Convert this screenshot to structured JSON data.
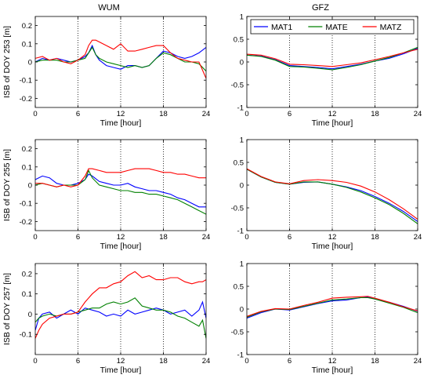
{
  "chart_data": {
    "type": "line",
    "x_unit_label": "Time [hour]",
    "xlim": [
      0,
      24
    ],
    "x_ticks": [
      0,
      6,
      12,
      18,
      24
    ],
    "columns": [
      "WUM",
      "GFZ"
    ],
    "legend": [
      "MAT1",
      "MATE",
      "MATZ"
    ],
    "series_colors": [
      "#0000ff",
      "#008000",
      "#ff0000"
    ],
    "grid": "dotted vertical lines at 6, 12, 18",
    "panels": [
      {
        "center": "WUM",
        "row": 0,
        "ylabel": "ISB of DOY 253 [m]",
        "ylim": [
          -0.25,
          0.25
        ],
        "y_ticks": [
          -0.2,
          -0.1,
          0,
          0.1,
          0.2
        ],
        "y_tick_labels": [
          "-0.2",
          "-0.1",
          "0",
          "0.1",
          "0.2"
        ],
        "series": [
          {
            "name": "MAT1",
            "x": [
              0,
              1,
              2,
              3,
              4,
              5,
              6,
              7,
              7.5,
              8,
              8.5,
              9,
              10,
              11,
              12,
              13,
              14,
              15,
              16,
              17,
              18,
              19,
              20,
              21,
              22,
              23,
              24
            ],
            "values": [
              0,
              0.02,
              0.01,
              0.02,
              0.01,
              0,
              0.01,
              0.03,
              0.05,
              0.09,
              0.04,
              0.01,
              -0.02,
              -0.03,
              -0.04,
              -0.02,
              -0.02,
              -0.03,
              -0.02,
              0.02,
              0.06,
              0.05,
              0.03,
              0.02,
              0.03,
              0.05,
              0.08
            ]
          },
          {
            "name": "MATE",
            "x": [
              0,
              1,
              2,
              3,
              4,
              5,
              6,
              7,
              7.5,
              8,
              8.5,
              9,
              10,
              11,
              12,
              13,
              14,
              15,
              16,
              17,
              18,
              19,
              20,
              21,
              22,
              23,
              24
            ],
            "values": [
              0,
              0.01,
              0.01,
              0.01,
              0,
              0,
              0.01,
              0.02,
              0.05,
              0.08,
              0.04,
              0.02,
              0,
              -0.01,
              -0.02,
              -0.03,
              -0.02,
              -0.03,
              -0.02,
              0.02,
              0.05,
              0.04,
              0.02,
              0,
              0,
              -0.01,
              -0.05
            ]
          },
          {
            "name": "MATZ",
            "x": [
              0,
              1,
              2,
              3,
              4,
              5,
              6,
              7,
              7.5,
              8,
              8.5,
              9,
              10,
              11,
              12,
              13,
              14,
              15,
              16,
              17,
              18,
              19,
              20,
              21,
              22,
              23,
              24
            ],
            "values": [
              0.02,
              0.03,
              0.01,
              0.02,
              0,
              -0.01,
              0.01,
              0.04,
              0.09,
              0.12,
              0.12,
              0.11,
              0.09,
              0.07,
              0.1,
              0.06,
              0.06,
              0.07,
              0.08,
              0.09,
              0.09,
              0.05,
              0.02,
              0.01,
              0,
              0,
              -0.09
            ]
          }
        ]
      },
      {
        "center": "GFZ",
        "row": 0,
        "ylabel": "",
        "ylim": [
          -1,
          1
        ],
        "y_ticks": [
          -1,
          -0.5,
          0,
          0.5,
          1
        ],
        "y_tick_labels": [
          "-1",
          "-0.5",
          "0",
          "0.5",
          "1"
        ],
        "legend_position": "top",
        "series": [
          {
            "name": "MAT1",
            "x": [
              0,
              2,
              4,
              6,
              8,
              10,
              12,
              14,
              16,
              18,
              20,
              22,
              24
            ],
            "values": [
              0.15,
              0.13,
              0.05,
              -0.08,
              -0.1,
              -0.12,
              -0.15,
              -0.1,
              -0.05,
              0.02,
              0.08,
              0.18,
              0.3
            ]
          },
          {
            "name": "MATE",
            "x": [
              0,
              2,
              4,
              6,
              8,
              10,
              12,
              14,
              16,
              18,
              20,
              22,
              24
            ],
            "values": [
              0.15,
              0.12,
              0.04,
              -0.1,
              -0.11,
              -0.14,
              -0.17,
              -0.12,
              -0.06,
              0.02,
              0.1,
              0.2,
              0.32
            ]
          },
          {
            "name": "MATZ",
            "x": [
              0,
              2,
              4,
              6,
              8,
              10,
              12,
              14,
              16,
              18,
              20,
              22,
              24
            ],
            "values": [
              0.17,
              0.15,
              0.07,
              -0.05,
              -0.06,
              -0.08,
              -0.1,
              -0.06,
              -0.02,
              0.05,
              0.12,
              0.2,
              0.28
            ]
          }
        ]
      },
      {
        "center": "WUM",
        "row": 1,
        "ylabel": "ISB of DOY 255 [m]",
        "ylim": [
          -0.25,
          0.25
        ],
        "y_ticks": [
          -0.2,
          -0.1,
          0,
          0.1,
          0.2
        ],
        "y_tick_labels": [
          "-0.2",
          "-0.1",
          "0",
          "0.1",
          "0.2"
        ],
        "series": [
          {
            "name": "MAT1",
            "x": [
              0,
              1,
              2,
              3,
              4,
              5,
              6,
              7,
              7.5,
              8,
              9,
              10,
              11,
              12,
              13,
              14,
              15,
              16,
              17,
              18,
              19,
              20,
              21,
              22,
              23,
              24
            ],
            "values": [
              0.03,
              0.05,
              0.04,
              0.01,
              0,
              0,
              0.01,
              0.03,
              0.06,
              0.05,
              0.02,
              0.01,
              0,
              0,
              0.01,
              -0.01,
              -0.02,
              -0.03,
              -0.03,
              -0.04,
              -0.05,
              -0.07,
              -0.08,
              -0.1,
              -0.12,
              -0.12
            ]
          },
          {
            "name": "MATE",
            "x": [
              0,
              1,
              2,
              3,
              4,
              5,
              6,
              7,
              7.5,
              8,
              9,
              10,
              11,
              12,
              13,
              14,
              15,
              16,
              17,
              18,
              19,
              20,
              21,
              22,
              23,
              24
            ],
            "values": [
              0,
              0.01,
              0,
              -0.01,
              0,
              0,
              0,
              0.03,
              0.08,
              0.04,
              0,
              -0.01,
              -0.02,
              -0.03,
              -0.03,
              -0.04,
              -0.04,
              -0.05,
              -0.05,
              -0.06,
              -0.07,
              -0.08,
              -0.1,
              -0.12,
              -0.14,
              -0.16
            ]
          },
          {
            "name": "MATZ",
            "x": [
              0,
              1,
              2,
              3,
              4,
              5,
              6,
              7,
              7.5,
              8,
              9,
              10,
              11,
              12,
              13,
              14,
              15,
              16,
              17,
              18,
              19,
              20,
              21,
              22,
              23,
              24
            ],
            "values": [
              0.01,
              0.01,
              0,
              -0.01,
              0,
              -0.01,
              0,
              0.05,
              0.09,
              0.09,
              0.08,
              0.07,
              0.07,
              0.07,
              0.08,
              0.09,
              0.09,
              0.09,
              0.08,
              0.07,
              0.07,
              0.06,
              0.06,
              0.05,
              0.04,
              0.04
            ]
          }
        ]
      },
      {
        "center": "GFZ",
        "row": 1,
        "ylabel": "",
        "ylim": [
          -1,
          1
        ],
        "y_ticks": [
          -1,
          -0.5,
          0,
          0.5,
          1
        ],
        "y_tick_labels": [
          "-1",
          "-0.5",
          "0",
          "0.5",
          "1"
        ],
        "series": [
          {
            "name": "MAT1",
            "x": [
              0,
              2,
              4,
              6,
              8,
              10,
              12,
              14,
              16,
              18,
              20,
              22,
              24
            ],
            "values": [
              0.35,
              0.18,
              0.06,
              0.02,
              0.06,
              0.07,
              0.02,
              -0.04,
              -0.12,
              -0.25,
              -0.4,
              -0.58,
              -0.8
            ]
          },
          {
            "name": "MATE",
            "x": [
              0,
              2,
              4,
              6,
              8,
              10,
              12,
              14,
              16,
              18,
              20,
              22,
              24
            ],
            "values": [
              0.35,
              0.18,
              0.06,
              0.02,
              0.07,
              0.07,
              0.02,
              -0.05,
              -0.15,
              -0.28,
              -0.43,
              -0.62,
              -0.85
            ]
          },
          {
            "name": "MATZ",
            "x": [
              0,
              2,
              4,
              6,
              8,
              10,
              12,
              14,
              16,
              18,
              20,
              22,
              24
            ],
            "values": [
              0.36,
              0.19,
              0.07,
              0.03,
              0.1,
              0.12,
              0.1,
              0.06,
              -0.02,
              -0.15,
              -0.32,
              -0.52,
              -0.75
            ]
          }
        ]
      },
      {
        "center": "WUM",
        "row": 2,
        "ylabel": "ISB of DOY 257 [m]",
        "ylim": [
          -0.2,
          0.25
        ],
        "y_ticks": [
          -0.1,
          0,
          0.1,
          0.2
        ],
        "y_tick_labels": [
          "-0.1",
          "0",
          "0.1",
          "0.2"
        ],
        "series": [
          {
            "name": "MAT1",
            "x": [
              0,
              0.5,
              1,
              2,
              3,
              4,
              5,
              6,
              7,
              8,
              9,
              10,
              11,
              12,
              13,
              14,
              15,
              16,
              17,
              18,
              19,
              20,
              21,
              22,
              23,
              23.5,
              24
            ],
            "values": [
              -0.08,
              -0.02,
              0,
              0.01,
              -0.02,
              0,
              0.02,
              0,
              0.03,
              0.02,
              0.01,
              -0.01,
              0,
              -0.01,
              0.02,
              0,
              0.01,
              0.02,
              0.03,
              0.02,
              0,
              0.01,
              0.02,
              -0.01,
              0.02,
              0.06,
              -0.02
            ]
          },
          {
            "name": "MATE",
            "x": [
              0,
              0.5,
              1,
              2,
              3,
              4,
              5,
              6,
              7,
              8,
              9,
              10,
              11,
              12,
              13,
              14,
              15,
              16,
              17,
              18,
              19,
              20,
              21,
              22,
              23,
              23.5,
              24
            ],
            "values": [
              -0.04,
              -0.02,
              -0.01,
              0,
              -0.01,
              0,
              0,
              0.01,
              0.02,
              0.03,
              0.03,
              0.05,
              0.06,
              0.05,
              0.06,
              0.08,
              0.04,
              0.03,
              0.02,
              0.02,
              0.01,
              -0.01,
              -0.02,
              -0.04,
              -0.06,
              -0.03,
              -0.12
            ]
          },
          {
            "name": "MATZ",
            "x": [
              0,
              0.5,
              1,
              2,
              3,
              4,
              5,
              6,
              7,
              8,
              9,
              10,
              11,
              12,
              13,
              14,
              15,
              16,
              17,
              18,
              19,
              20,
              21,
              22,
              23,
              23.5,
              24
            ],
            "values": [
              -0.12,
              -0.08,
              -0.05,
              -0.02,
              -0.01,
              0,
              0,
              0.01,
              0.06,
              0.1,
              0.13,
              0.13,
              0.15,
              0.16,
              0.19,
              0.21,
              0.18,
              0.19,
              0.17,
              0.17,
              0.18,
              0.18,
              0.16,
              0.15,
              0.16,
              0.16,
              0.17
            ]
          }
        ]
      },
      {
        "center": "GFZ",
        "row": 2,
        "ylabel": "",
        "ylim": [
          -1,
          1
        ],
        "y_ticks": [
          -1,
          -0.5,
          0,
          0.5,
          1
        ],
        "y_tick_labels": [
          "-1",
          "-0.5",
          "0",
          "0.5",
          "1"
        ],
        "series": [
          {
            "name": "MAT1",
            "x": [
              0,
              2,
              4,
              6,
              8,
              10,
              12,
              14,
              16,
              17,
              18,
              20,
              22,
              24
            ],
            "values": [
              -0.2,
              -0.08,
              0,
              -0.02,
              0.05,
              0.12,
              0.18,
              0.2,
              0.25,
              0.26,
              0.22,
              0.15,
              0.06,
              -0.05
            ]
          },
          {
            "name": "MATE",
            "x": [
              0,
              2,
              4,
              6,
              8,
              10,
              12,
              14,
              16,
              17,
              18,
              20,
              22,
              24
            ],
            "values": [
              -0.18,
              -0.06,
              0,
              -0.01,
              0.06,
              0.13,
              0.2,
              0.22,
              0.25,
              0.25,
              0.22,
              0.13,
              0.04,
              -0.08
            ]
          },
          {
            "name": "MATZ",
            "x": [
              0,
              2,
              4,
              6,
              8,
              10,
              12,
              14,
              16,
              17,
              18,
              20,
              22,
              24
            ],
            "values": [
              -0.16,
              -0.05,
              0.01,
              0,
              0.08,
              0.15,
              0.24,
              0.26,
              0.27,
              0.28,
              0.24,
              0.15,
              0.05,
              -0.04
            ]
          }
        ]
      }
    ]
  }
}
